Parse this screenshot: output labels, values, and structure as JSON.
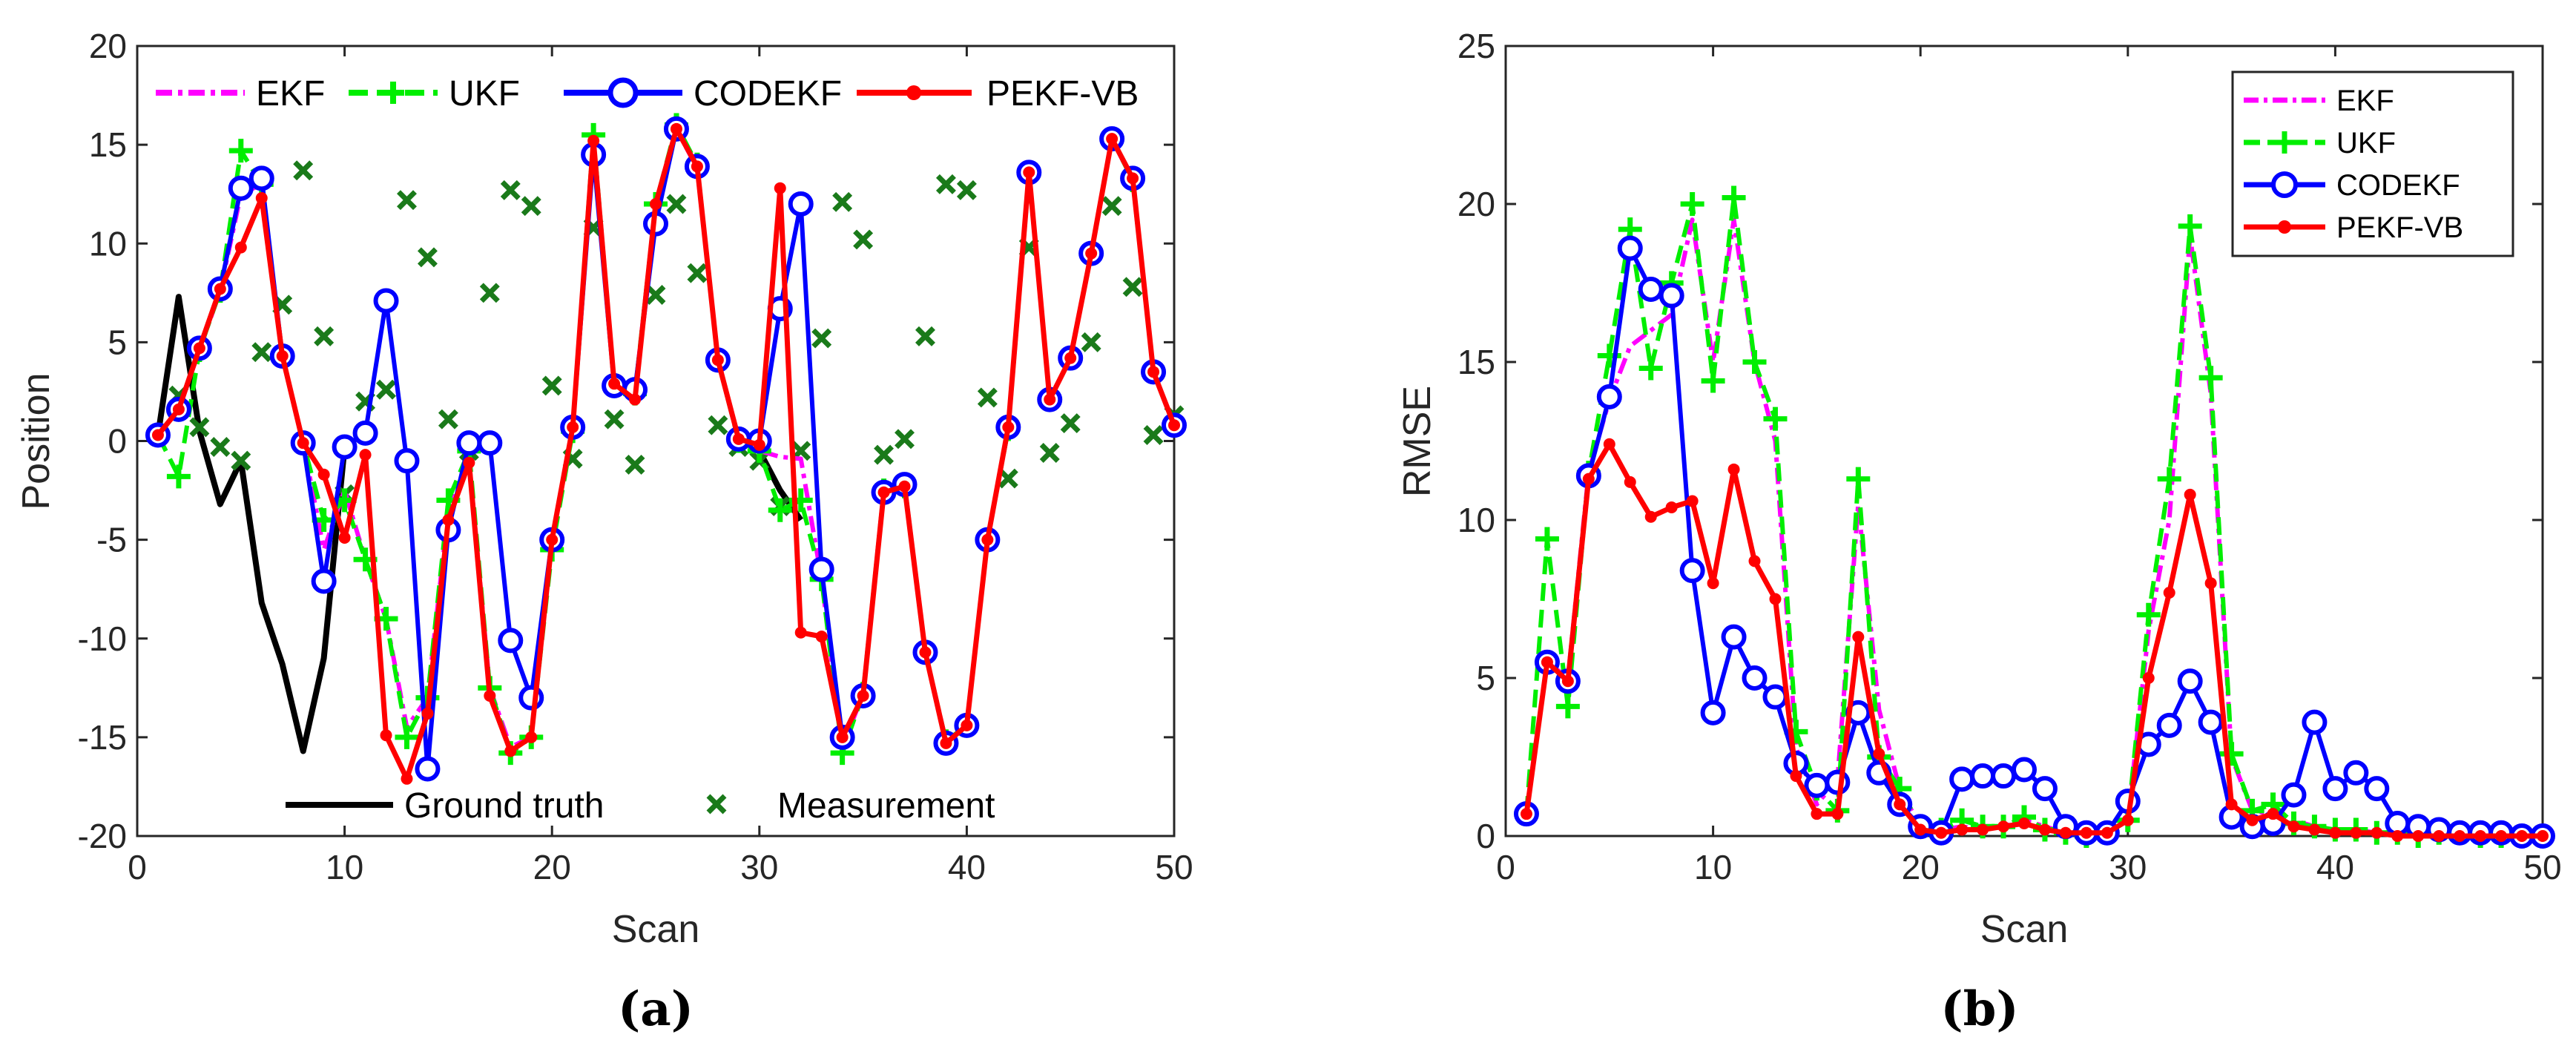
{
  "chart_data": [
    {
      "type": "line",
      "panel_label": "(a)",
      "xlabel": "Scan",
      "ylabel": "Position",
      "xlim": [
        0,
        50
      ],
      "ylim": [
        -20,
        20
      ],
      "xticks": [
        0,
        10,
        20,
        30,
        40,
        50
      ],
      "yticks": [
        -20,
        -15,
        -10,
        -5,
        0,
        5,
        10,
        15,
        20
      ],
      "legend_top": [
        "EKF",
        "UKF",
        "CODEKF",
        "PEKF-VB"
      ],
      "legend_bottom": [
        "Ground truth",
        "Measurement"
      ],
      "series": [
        {
          "name": "Ground truth",
          "color": "#000000",
          "x": [
            1,
            2,
            3,
            4,
            5,
            6,
            7,
            8,
            9,
            10
          ],
          "y": [
            0.3,
            7.3,
            0.5,
            -3.2,
            -1.0,
            -8.2,
            -11.3,
            -15.7,
            -11.0,
            -0.3
          ]
        },
        {
          "name": "Ground truth",
          "color": "#000000",
          "x": [
            30,
            31,
            32
          ],
          "y": [
            -0.5,
            -2.5,
            -4.0
          ]
        },
        {
          "name": "Measurement",
          "color": "#1a7a1a",
          "x": [
            1,
            2,
            3,
            4,
            5,
            6,
            7,
            8,
            9,
            10,
            11,
            12,
            13,
            14,
            15,
            16,
            17,
            18,
            19,
            20,
            21,
            22,
            23,
            24,
            25,
            26,
            27,
            28,
            29,
            30,
            31,
            32,
            33,
            34,
            35,
            36,
            37,
            38,
            39,
            40,
            41,
            42,
            43,
            44,
            45,
            46,
            47,
            48,
            49,
            50
          ],
          "y": [
            0.3,
            2.3,
            0.7,
            -0.3,
            -1.0,
            4.5,
            6.9,
            13.7,
            5.3,
            -2.7,
            2.0,
            2.6,
            12.2,
            9.3,
            1.1,
            -0.5,
            7.5,
            12.7,
            11.9,
            2.8,
            -0.9,
            10.8,
            1.1,
            -1.2,
            7.4,
            12.0,
            8.5,
            0.8,
            -0.3,
            -1.0,
            -3.3,
            -0.5,
            5.2,
            12.1,
            10.2,
            -0.7,
            0.1,
            5.3,
            13.0,
            12.7,
            2.2,
            -1.9,
            9.8,
            -0.6,
            0.9,
            5.0,
            11.9,
            7.8,
            0.3,
            1.3
          ]
        },
        {
          "name": "EKF",
          "color": "#ff00ff",
          "x": [
            1,
            2,
            3,
            4,
            5,
            6,
            7,
            8,
            9,
            10,
            11,
            12,
            13,
            14,
            15,
            16,
            17,
            18,
            19,
            20,
            21,
            22,
            23,
            24,
            25,
            26,
            27,
            28,
            29,
            30,
            31,
            32,
            33,
            34,
            35,
            36,
            37,
            38,
            39,
            40,
            41,
            42,
            43,
            44,
            45,
            46,
            47,
            48,
            49,
            50
          ],
          "y": [
            0.3,
            1.6,
            4.6,
            7.6,
            12.5,
            13.0,
            4.3,
            -0.1,
            -5.5,
            -2.5,
            -6.0,
            -9.0,
            -14.5,
            -13.0,
            -3.5,
            -1.0,
            -12.5,
            -15.5,
            -15.0,
            -5.0,
            0.6,
            15.2,
            2.8,
            2.4,
            12.0,
            15.8,
            13.8,
            4.1,
            0.0,
            -0.5,
            -0.8,
            -0.9,
            -7.0,
            -15.5,
            -12.8,
            -2.5,
            -2.3,
            -10.7,
            -15.2,
            -14.4,
            -5.0,
            0.6,
            13.5,
            2.1,
            4.2,
            9.5,
            15.3,
            13.2,
            3.5,
            0.8
          ]
        },
        {
          "name": "UKF",
          "color": "#00ee00",
          "x": [
            1,
            2,
            3,
            4,
            5,
            6,
            7,
            8,
            9,
            10,
            11,
            12,
            13,
            14,
            15,
            16,
            17,
            18,
            19,
            20,
            21,
            22,
            23,
            24,
            25,
            26,
            27,
            28,
            29,
            30,
            31,
            32,
            33,
            34,
            35,
            36,
            37,
            38,
            39,
            40,
            41,
            42,
            43,
            44,
            45,
            46,
            47,
            48,
            49,
            50
          ],
          "y": [
            0.3,
            -1.8,
            4.6,
            7.6,
            14.7,
            13.0,
            4.3,
            -0.1,
            -4.0,
            -3.0,
            -6.0,
            -9.0,
            -15.0,
            -13.0,
            -3.0,
            -0.5,
            -12.5,
            -15.8,
            -15.0,
            -5.5,
            0.5,
            15.5,
            2.8,
            2.4,
            12.0,
            16.0,
            14.0,
            4.1,
            0.0,
            -0.5,
            -3.5,
            -3.0,
            -7.0,
            -15.8,
            -12.8,
            -2.5,
            -2.3,
            -10.7,
            -15.2,
            -14.4,
            -5.0,
            0.6,
            13.5,
            2.1,
            4.2,
            9.5,
            15.3,
            13.2,
            3.5,
            0.8
          ]
        },
        {
          "name": "CODEKF",
          "color": "#0000ff",
          "x": [
            1,
            2,
            3,
            4,
            5,
            6,
            7,
            8,
            9,
            10,
            11,
            12,
            13,
            14,
            15,
            16,
            17,
            18,
            19,
            20,
            21,
            22,
            23,
            24,
            25,
            26,
            27,
            28,
            29,
            30,
            31,
            32,
            33,
            34,
            35,
            36,
            37,
            38,
            39,
            40,
            41,
            42,
            43,
            44,
            45,
            46,
            47,
            48,
            49,
            50
          ],
          "y": [
            0.3,
            1.6,
            4.7,
            7.7,
            12.8,
            13.3,
            4.3,
            -0.1,
            -7.1,
            -0.3,
            0.4,
            7.1,
            -1.0,
            -16.6,
            -4.5,
            -0.1,
            -0.1,
            -10.1,
            -13.0,
            -5.0,
            0.7,
            14.5,
            2.8,
            2.6,
            11.0,
            15.8,
            13.9,
            4.1,
            0.1,
            0.0,
            6.7,
            12.0,
            -6.5,
            -15.0,
            -12.9,
            -2.6,
            -2.2,
            -10.7,
            -15.3,
            -14.4,
            -5.0,
            0.7,
            13.6,
            2.1,
            4.2,
            9.5,
            15.3,
            13.3,
            3.5,
            0.8
          ]
        },
        {
          "name": "PEKF-VB",
          "color": "#ff0000",
          "x": [
            1,
            2,
            3,
            4,
            5,
            6,
            7,
            8,
            9,
            10,
            11,
            12,
            13,
            14,
            15,
            16,
            17,
            18,
            19,
            20,
            21,
            22,
            23,
            24,
            25,
            26,
            27,
            28,
            29,
            30,
            31,
            32,
            33,
            34,
            35,
            36,
            37,
            38,
            39,
            40,
            41,
            42,
            43,
            44,
            45,
            46,
            47,
            48,
            49,
            50
          ],
          "y": [
            0.3,
            1.6,
            4.7,
            7.7,
            9.8,
            12.3,
            4.3,
            -0.1,
            -1.7,
            -4.9,
            -0.7,
            -14.9,
            -17.1,
            -13.8,
            -4.0,
            -1.1,
            -12.9,
            -15.7,
            -15.0,
            -5.0,
            0.7,
            15.2,
            2.9,
            2.1,
            12.0,
            15.8,
            13.9,
            4.1,
            0.1,
            -0.2,
            12.8,
            -9.7,
            -9.9,
            -15.0,
            -12.9,
            -2.6,
            -2.3,
            -10.7,
            -15.3,
            -14.4,
            -5.0,
            0.7,
            13.6,
            2.1,
            4.2,
            9.5,
            15.3,
            13.3,
            3.5,
            0.8
          ]
        }
      ]
    },
    {
      "type": "line",
      "panel_label": "(b)",
      "xlabel": "Scan",
      "ylabel": "RMSE",
      "xlim": [
        0,
        50
      ],
      "ylim": [
        0,
        25
      ],
      "xticks": [
        0,
        10,
        20,
        30,
        40,
        50
      ],
      "yticks": [
        0,
        5,
        10,
        15,
        20,
        25
      ],
      "legend": [
        "EKF",
        "UKF",
        "CODEKF",
        "PEKF-VB"
      ],
      "series": [
        {
          "name": "EKF",
          "color": "#ff00ff",
          "x": [
            1,
            2,
            3,
            4,
            5,
            6,
            7,
            8,
            9,
            10,
            11,
            12,
            13,
            14,
            15,
            16,
            17,
            18,
            19,
            20,
            21,
            22,
            23,
            24,
            25,
            26,
            27,
            28,
            29,
            30,
            31,
            32,
            33,
            34,
            35,
            36,
            37,
            38,
            39,
            40,
            41,
            42,
            43,
            44,
            45,
            46,
            47,
            48,
            49,
            50
          ],
          "y": [
            0.7,
            5.5,
            5.0,
            11.5,
            13.8,
            15.5,
            16.0,
            16.5,
            19.5,
            15.0,
            19.5,
            15.0,
            12.5,
            2.8,
            1.0,
            1.8,
            10.5,
            4.0,
            1.5,
            0.3,
            0.2,
            0.3,
            0.2,
            0.3,
            0.5,
            0.3,
            0.1,
            0.1,
            0.1,
            0.5,
            6.5,
            10.0,
            19.0,
            14.0,
            2.5,
            0.8,
            0.7,
            0.5,
            0.3,
            0.2,
            0.2,
            0.1,
            0.1,
            0.1,
            0.1,
            0.1,
            0.0,
            0.0,
            0.0,
            0.0
          ]
        },
        {
          "name": "UKF",
          "color": "#00ee00",
          "x": [
            1,
            2,
            3,
            4,
            5,
            6,
            7,
            8,
            9,
            10,
            11,
            12,
            13,
            14,
            15,
            16,
            17,
            18,
            19,
            20,
            21,
            22,
            23,
            24,
            25,
            26,
            27,
            28,
            29,
            30,
            31,
            32,
            33,
            34,
            35,
            36,
            37,
            38,
            39,
            40,
            41,
            42,
            43,
            44,
            45,
            46,
            47,
            48,
            49,
            50
          ],
          "y": [
            0.7,
            9.4,
            4.1,
            11.5,
            15.2,
            19.2,
            14.8,
            17.5,
            20.0,
            14.4,
            20.2,
            15.0,
            13.2,
            3.3,
            1.5,
            0.8,
            11.3,
            2.5,
            1.5,
            0.3,
            0.2,
            0.5,
            0.3,
            0.3,
            0.6,
            0.2,
            0.1,
            0.0,
            0.1,
            0.5,
            7.0,
            11.3,
            19.3,
            14.5,
            2.6,
            0.8,
            1.0,
            0.4,
            0.3,
            0.2,
            0.2,
            0.1,
            0.1,
            0.0,
            0.1,
            0.1,
            0.0,
            0.0,
            0.0,
            0.0
          ]
        },
        {
          "name": "CODEKF",
          "color": "#0000ff",
          "x": [
            1,
            2,
            3,
            4,
            5,
            6,
            7,
            8,
            9,
            10,
            11,
            12,
            13,
            14,
            15,
            16,
            17,
            18,
            19,
            20,
            21,
            22,
            23,
            24,
            25,
            26,
            27,
            28,
            29,
            30,
            31,
            32,
            33,
            34,
            35,
            36,
            37,
            38,
            39,
            40,
            41,
            42,
            43,
            44,
            45,
            46,
            47,
            48,
            49,
            50
          ],
          "y": [
            0.7,
            5.5,
            4.9,
            11.4,
            13.9,
            18.6,
            17.3,
            17.1,
            8.4,
            3.9,
            6.3,
            5.0,
            4.4,
            2.3,
            1.6,
            1.7,
            3.9,
            2.0,
            1.0,
            0.3,
            0.1,
            1.8,
            1.9,
            1.9,
            2.1,
            1.5,
            0.3,
            0.1,
            0.1,
            1.1,
            2.9,
            3.5,
            4.9,
            3.6,
            0.6,
            0.3,
            0.4,
            1.3,
            3.6,
            1.5,
            2.0,
            1.5,
            0.4,
            0.3,
            0.2,
            0.1,
            0.1,
            0.1,
            0.0,
            0.0
          ]
        },
        {
          "name": "PEKF-VB",
          "color": "#ff0000",
          "x": [
            1,
            2,
            3,
            4,
            5,
            6,
            7,
            8,
            9,
            10,
            11,
            12,
            13,
            14,
            15,
            16,
            17,
            18,
            19,
            20,
            21,
            22,
            23,
            24,
            25,
            26,
            27,
            28,
            29,
            30,
            31,
            32,
            33,
            34,
            35,
            36,
            37,
            38,
            39,
            40,
            41,
            42,
            43,
            44,
            45,
            46,
            47,
            48,
            49,
            50
          ],
          "y": [
            0.7,
            5.5,
            4.9,
            11.3,
            12.4,
            11.2,
            10.1,
            10.4,
            10.6,
            8.0,
            11.6,
            8.7,
            7.5,
            1.9,
            0.7,
            0.7,
            6.3,
            2.6,
            1.0,
            0.2,
            0.1,
            0.2,
            0.2,
            0.3,
            0.4,
            0.2,
            0.1,
            0.1,
            0.1,
            0.5,
            5.0,
            7.7,
            10.8,
            8.0,
            1.0,
            0.5,
            0.7,
            0.3,
            0.2,
            0.1,
            0.1,
            0.1,
            0.0,
            0.0,
            0.0,
            0.0,
            0.0,
            0.0,
            0.0,
            0.0
          ]
        }
      ]
    }
  ]
}
